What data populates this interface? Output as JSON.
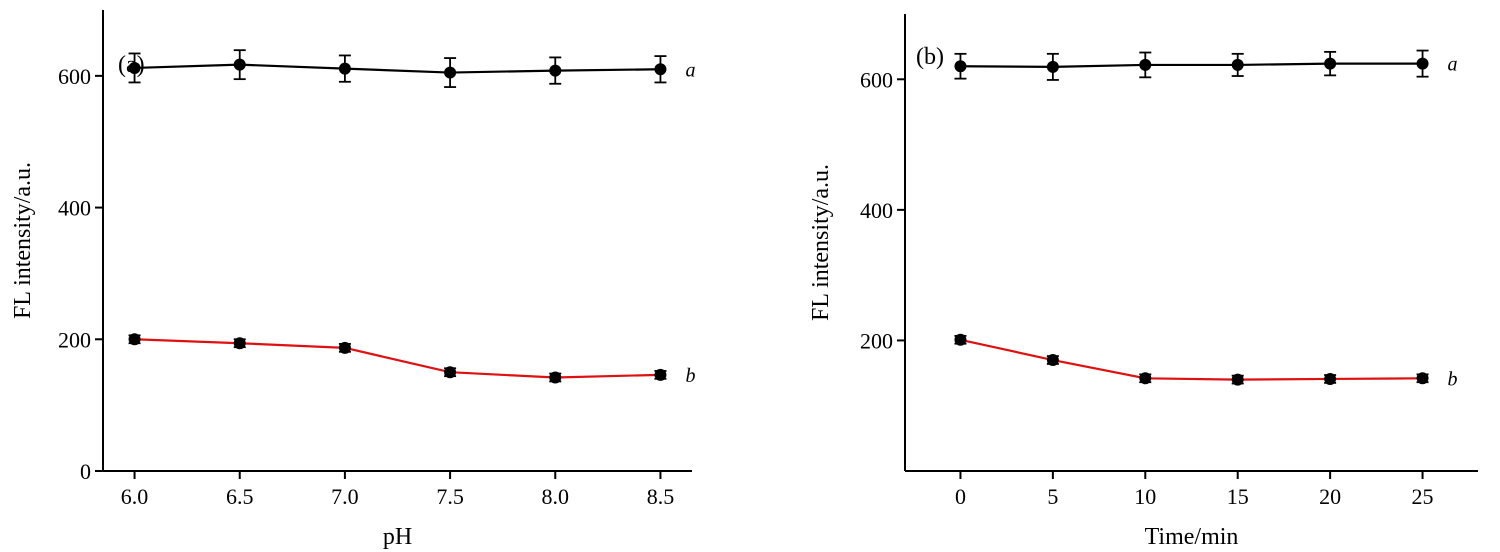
{
  "chart_data": [
    {
      "panel_label": "(a)",
      "type": "line",
      "xlabel": "pH",
      "ylabel": "FL intensity/a.u.",
      "x": [
        6.0,
        6.5,
        7.0,
        7.5,
        8.0,
        8.5
      ],
      "x_tick_labels": [
        "6.0",
        "6.5",
        "7.0",
        "7.5",
        "8.0",
        "8.5"
      ],
      "y_tick_labels": [
        "0",
        "200",
        "400",
        "600"
      ],
      "y_ticks": [
        0,
        200,
        400,
        600
      ],
      "xlim": [
        5.85,
        8.65
      ],
      "ylim": [
        0,
        700
      ],
      "grid": false,
      "series": [
        {
          "name": "a",
          "color": "#000000",
          "values": [
            612,
            617,
            611,
            605,
            608,
            610
          ],
          "errors": [
            22,
            22,
            20,
            22,
            20,
            20
          ]
        },
        {
          "name": "b",
          "color": "#e01010",
          "values": [
            200,
            194,
            187,
            150,
            142,
            146
          ],
          "errors": [
            6,
            6,
            6,
            6,
            6,
            6
          ]
        }
      ]
    },
    {
      "panel_label": "(b)",
      "type": "line",
      "xlabel": "Time/min",
      "ylabel": "FL intensity/a.u.",
      "x": [
        0,
        5,
        10,
        15,
        20,
        25
      ],
      "x_tick_labels": [
        "0",
        "5",
        "10",
        "15",
        "20",
        "25"
      ],
      "y_tick_labels": [
        "200",
        "400",
        "600"
      ],
      "y_ticks": [
        200,
        400,
        600
      ],
      "xlim": [
        -3,
        28
      ],
      "ylim": [
        0,
        700
      ],
      "grid": false,
      "series": [
        {
          "name": "a",
          "color": "#000000",
          "values": [
            620,
            619,
            622,
            622,
            624,
            624
          ],
          "errors": [
            19,
            20,
            19,
            17,
            18,
            20
          ]
        },
        {
          "name": "b",
          "color": "#e01010",
          "values": [
            201,
            170,
            142,
            140,
            141,
            142
          ],
          "errors": [
            6,
            6,
            6,
            6,
            6,
            6
          ]
        }
      ]
    }
  ]
}
